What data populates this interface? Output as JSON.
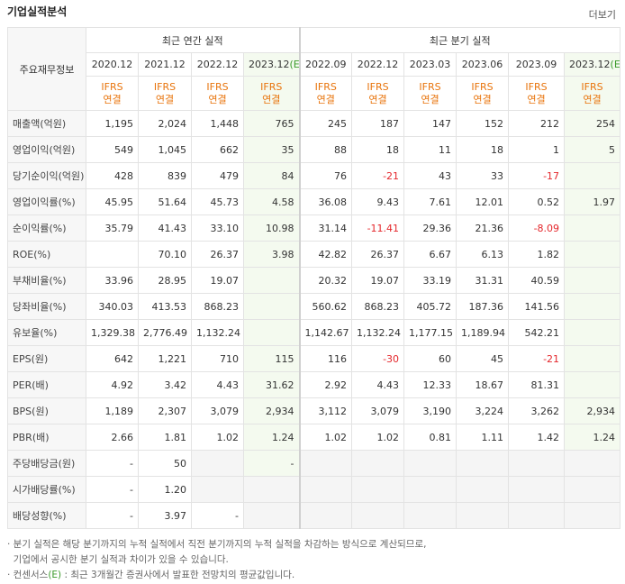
{
  "header": {
    "title": "기업실적분석",
    "more": "더보기"
  },
  "table": {
    "corner": "주요재무정보",
    "groups": [
      "최근 연간 실적",
      "최근 분기 실적"
    ],
    "periods": [
      {
        "date": "2020.12"
      },
      {
        "date": "2021.12"
      },
      {
        "date": "2022.12"
      },
      {
        "date": "2023.12",
        "estimate": "(E)"
      },
      {
        "date": "2022.09"
      },
      {
        "date": "2022.12"
      },
      {
        "date": "2023.03"
      },
      {
        "date": "2023.06"
      },
      {
        "date": "2023.09"
      },
      {
        "date": "2023.12",
        "estimate": "(E)"
      }
    ],
    "standards": [
      {
        "ifrs": "IFRS",
        "scope": "연결"
      },
      {
        "ifrs": "IFRS",
        "scope": "연결"
      },
      {
        "ifrs": "IFRS",
        "scope": "연결"
      },
      {
        "ifrs": "IFRS",
        "scope": "연결"
      },
      {
        "ifrs": "IFRS",
        "scope": "연결"
      },
      {
        "ifrs": "IFRS",
        "scope": "연결"
      },
      {
        "ifrs": "IFRS",
        "scope": "연결"
      },
      {
        "ifrs": "IFRS",
        "scope": "연결"
      },
      {
        "ifrs": "IFRS",
        "scope": "연결"
      },
      {
        "ifrs": "IFRS",
        "scope": "연결"
      }
    ],
    "rows": [
      {
        "label": "매출액(억원)",
        "values": [
          "1,195",
          "2,024",
          "1,448",
          "765",
          "245",
          "187",
          "147",
          "152",
          "212",
          "254"
        ]
      },
      {
        "label": "영업이익(억원)",
        "values": [
          "549",
          "1,045",
          "662",
          "35",
          "88",
          "18",
          "11",
          "18",
          "1",
          "5"
        ]
      },
      {
        "label": "당기순이익(억원)",
        "values": [
          "428",
          "839",
          "479",
          "84",
          "76",
          "-21",
          "43",
          "33",
          "-17",
          null
        ]
      },
      {
        "label": "영업이익률(%)",
        "values": [
          "45.95",
          "51.64",
          "45.73",
          "4.58",
          "36.08",
          "9.43",
          "7.61",
          "12.01",
          "0.52",
          "1.97"
        ]
      },
      {
        "label": "순이익률(%)",
        "values": [
          "35.79",
          "41.43",
          "33.10",
          "10.98",
          "31.14",
          "-11.41",
          "29.36",
          "21.36",
          "-8.09",
          null
        ]
      },
      {
        "label": "ROE(%)",
        "values": [
          null,
          "70.10",
          "26.37",
          "3.98",
          "42.82",
          "26.37",
          "6.67",
          "6.13",
          "1.82",
          null
        ]
      },
      {
        "label": "부채비율(%)",
        "values": [
          "33.96",
          "28.95",
          "19.07",
          null,
          "20.32",
          "19.07",
          "33.19",
          "31.31",
          "40.59",
          null
        ]
      },
      {
        "label": "당좌비율(%)",
        "values": [
          "340.03",
          "413.53",
          "868.23",
          null,
          "560.62",
          "868.23",
          "405.72",
          "187.36",
          "141.56",
          null
        ]
      },
      {
        "label": "유보율(%)",
        "values": [
          "1,329.38",
          "2,776.49",
          "1,132.24",
          null,
          "1,142.67",
          "1,132.24",
          "1,177.15",
          "1,189.94",
          "542.21",
          null
        ]
      },
      {
        "label": "EPS(원)",
        "values": [
          "642",
          "1,221",
          "710",
          "115",
          "116",
          "-30",
          "60",
          "45",
          "-21",
          null
        ]
      },
      {
        "label": "PER(배)",
        "values": [
          "4.92",
          "3.42",
          "4.43",
          "31.62",
          "2.92",
          "4.43",
          "12.33",
          "18.67",
          "81.31",
          null
        ]
      },
      {
        "label": "BPS(원)",
        "values": [
          "1,189",
          "2,307",
          "3,079",
          "2,934",
          "3,112",
          "3,079",
          "3,190",
          "3,224",
          "3,262",
          "2,934"
        ]
      },
      {
        "label": "PBR(배)",
        "values": [
          "2.66",
          "1.81",
          "1.02",
          "1.24",
          "1.02",
          "1.02",
          "0.81",
          "1.11",
          "1.42",
          "1.24"
        ]
      },
      {
        "label": "주당배당금(원)",
        "values": [
          "-",
          "50",
          null,
          "-",
          null,
          null,
          null,
          null,
          null,
          null
        ]
      },
      {
        "label": "시가배당률(%)",
        "values": [
          "-",
          "1.20",
          null,
          null,
          null,
          null,
          null,
          null,
          null,
          null
        ]
      },
      {
        "label": "배당성향(%)",
        "values": [
          "-",
          "3.97",
          "-",
          null,
          null,
          null,
          null,
          null,
          null,
          null
        ]
      }
    ]
  },
  "notes": [
    {
      "parts": [
        "· 분기 실적은 해당 분기까지의 누적 실적에서 직전 분기까지의 누적 실적을 차감하는 방식으로 계산되므로,"
      ]
    },
    {
      "parts": [
        "  기업에서 공시한 분기 실적과 차이가 있을 수 있습니다."
      ]
    },
    {
      "parts": [
        "· 컨센서스",
        "(E)",
        " : 최근 3개월간 증권사에서 발표한 전망치의 평균값입니다."
      ]
    }
  ]
}
